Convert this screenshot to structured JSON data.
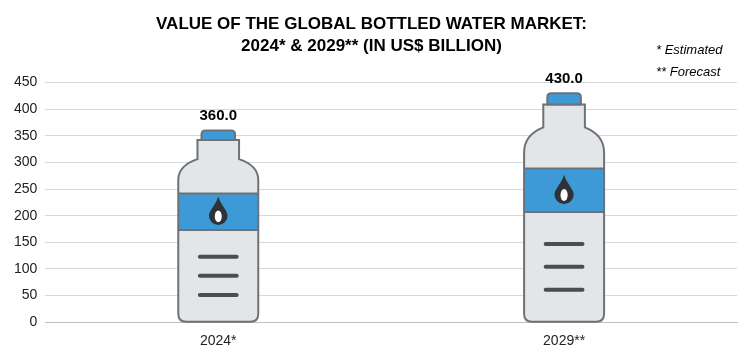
{
  "chart_data": {
    "type": "bar",
    "title": [
      "VALUE OF THE GLOBAL BOTTLED WATER MARKET:",
      "2024* & 2029** (IN US$ BILLION)"
    ],
    "annotations": [
      "* Estimated",
      "** Forecast"
    ],
    "categories": [
      "2024*",
      "2029**"
    ],
    "values": [
      360,
      430
    ],
    "value_labels": [
      "360.0",
      "430.0"
    ],
    "color": "#e3e6e8",
    "ylim": [
      0,
      450
    ],
    "yticks": [
      0,
      50,
      100,
      150,
      200,
      250,
      300,
      350,
      400,
      450
    ],
    "grid": true,
    "data_labels": true
  }
}
